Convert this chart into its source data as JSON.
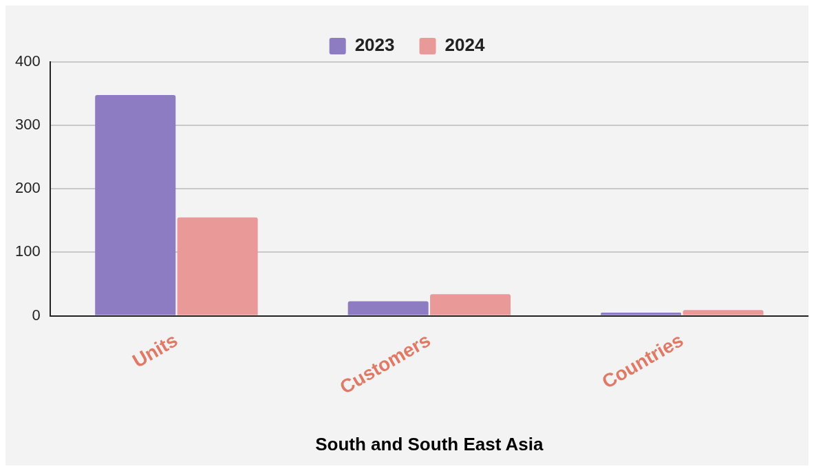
{
  "chart_data": {
    "type": "bar",
    "xlabel": "South and South East Asia",
    "categories": [
      "Units",
      "Customers",
      "Countries"
    ],
    "series": [
      {
        "name": "2023",
        "color": "#8e7cc3",
        "values": [
          348,
          23,
          5
        ]
      },
      {
        "name": "2024",
        "color": "#ea9999",
        "values": [
          155,
          34,
          9
        ]
      }
    ],
    "ylim": [
      0,
      400
    ],
    "yticks": [
      0,
      100,
      200,
      300,
      400
    ],
    "grid": "y",
    "legend": "top"
  }
}
